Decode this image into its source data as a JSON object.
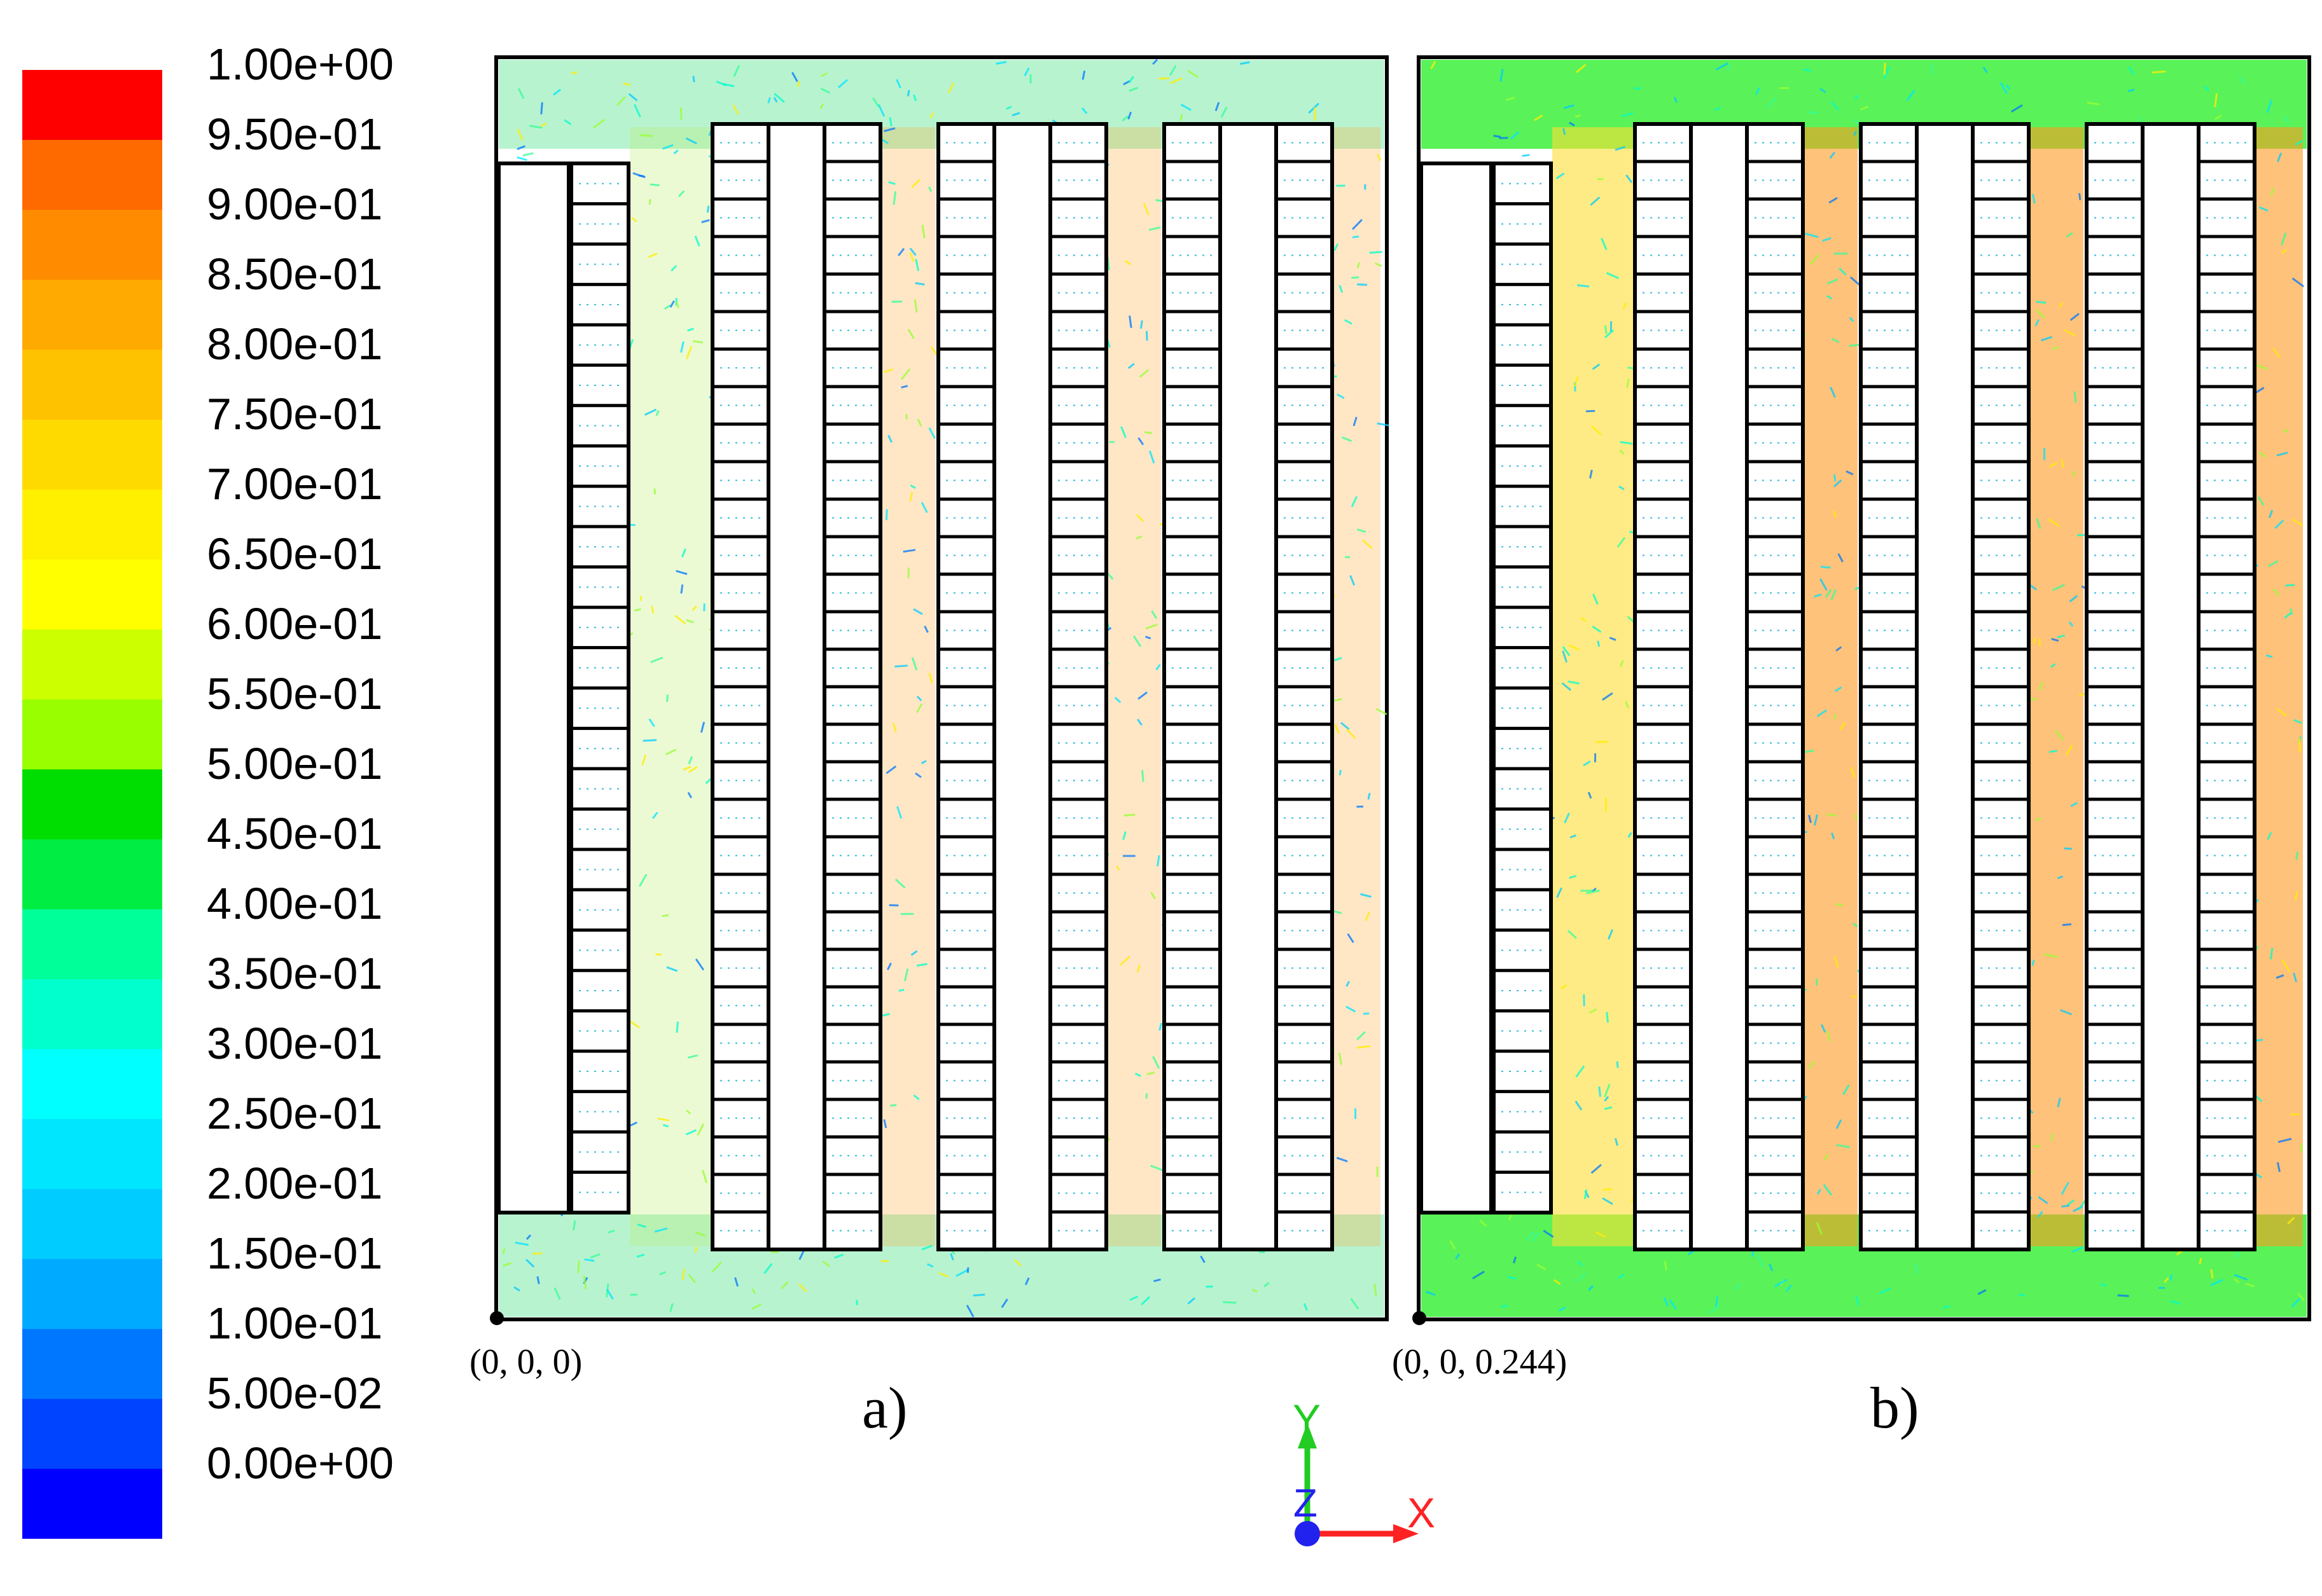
{
  "legend": {
    "labels": [
      "1.00e+00",
      "9.50e-01",
      "9.00e-01",
      "8.50e-01",
      "8.00e-01",
      "7.50e-01",
      "7.00e-01",
      "6.50e-01",
      "6.00e-01",
      "5.50e-01",
      "5.00e-01",
      "4.50e-01",
      "4.00e-01",
      "3.50e-01",
      "3.00e-01",
      "2.50e-01",
      "2.00e-01",
      "1.50e-01",
      "1.00e-01",
      "5.00e-02",
      "0.00e+00"
    ],
    "colors": [
      "#ff0000",
      "#ff6a00",
      "#ff8c00",
      "#ffaa00",
      "#ffc200",
      "#ffda00",
      "#fff000",
      "#ffff00",
      "#ccff00",
      "#99ff00",
      "#00dd00",
      "#00ee44",
      "#00ff99",
      "#00ffcc",
      "#00ffff",
      "#00e6ff",
      "#00ccff",
      "#00aaff",
      "#0077ff",
      "#0044ff",
      "#0000ff"
    ]
  },
  "panels": [
    {
      "id": "a",
      "caption": "a)",
      "origin_label": "(0, 0, 0)",
      "band_color": "#33dd77",
      "channel_color": "#bbee66",
      "loop_color": "#ffaa33"
    },
    {
      "id": "b",
      "caption": "b)",
      "origin_label": "(0, 0, 0.244)",
      "band_color": "#22ee22",
      "channel_color": "#ffdd33",
      "loop_color": "#ff9922"
    }
  ],
  "axes": {
    "y": "Y",
    "x": "X",
    "z": "Z"
  }
}
